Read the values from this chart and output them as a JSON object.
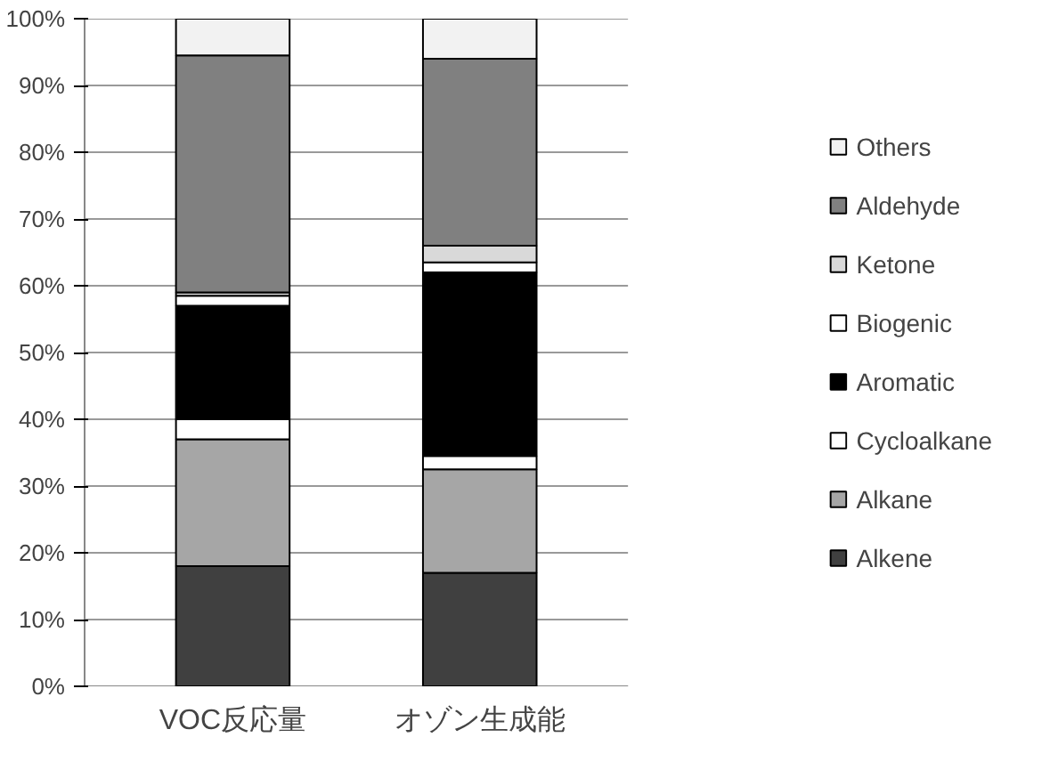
{
  "chart_data": {
    "type": "bar",
    "stacked": true,
    "categories": [
      "VOC反応量",
      "オゾン生成能"
    ],
    "series": [
      {
        "name": "Alkene",
        "color": "#404040",
        "values": [
          18,
          17
        ]
      },
      {
        "name": "Alkane",
        "color": "#a6a6a6",
        "values": [
          19,
          15.5
        ]
      },
      {
        "name": "Cycloalkane",
        "color": "#ffffff",
        "values": [
          3,
          2
        ]
      },
      {
        "name": "Aromatic",
        "color": "#000000",
        "values": [
          17,
          27.5
        ]
      },
      {
        "name": "Biogenic",
        "color": "#ffffff",
        "values": [
          1.5,
          1.5
        ]
      },
      {
        "name": "Ketone",
        "color": "#d9d9d9",
        "values": [
          0.5,
          2.5
        ]
      },
      {
        "name": "Aldehyde",
        "color": "#808080",
        "values": [
          35.5,
          28
        ]
      },
      {
        "name": "Others",
        "color": "#f2f2f2",
        "values": [
          5.5,
          6
        ]
      }
    ],
    "ylim": [
      0,
      100
    ],
    "yticks": [
      {
        "value": 0,
        "label": "0%"
      },
      {
        "value": 10,
        "label": "10%"
      },
      {
        "value": 20,
        "label": "20%"
      },
      {
        "value": 30,
        "label": "30%"
      },
      {
        "value": 40,
        "label": "40%"
      },
      {
        "value": 50,
        "label": "50%"
      },
      {
        "value": 60,
        "label": "60%"
      },
      {
        "value": 70,
        "label": "70%"
      },
      {
        "value": 80,
        "label": "80%"
      },
      {
        "value": 90,
        "label": "90%"
      },
      {
        "value": 100,
        "label": "100%"
      }
    ],
    "grid": "y",
    "legend": "right"
  }
}
